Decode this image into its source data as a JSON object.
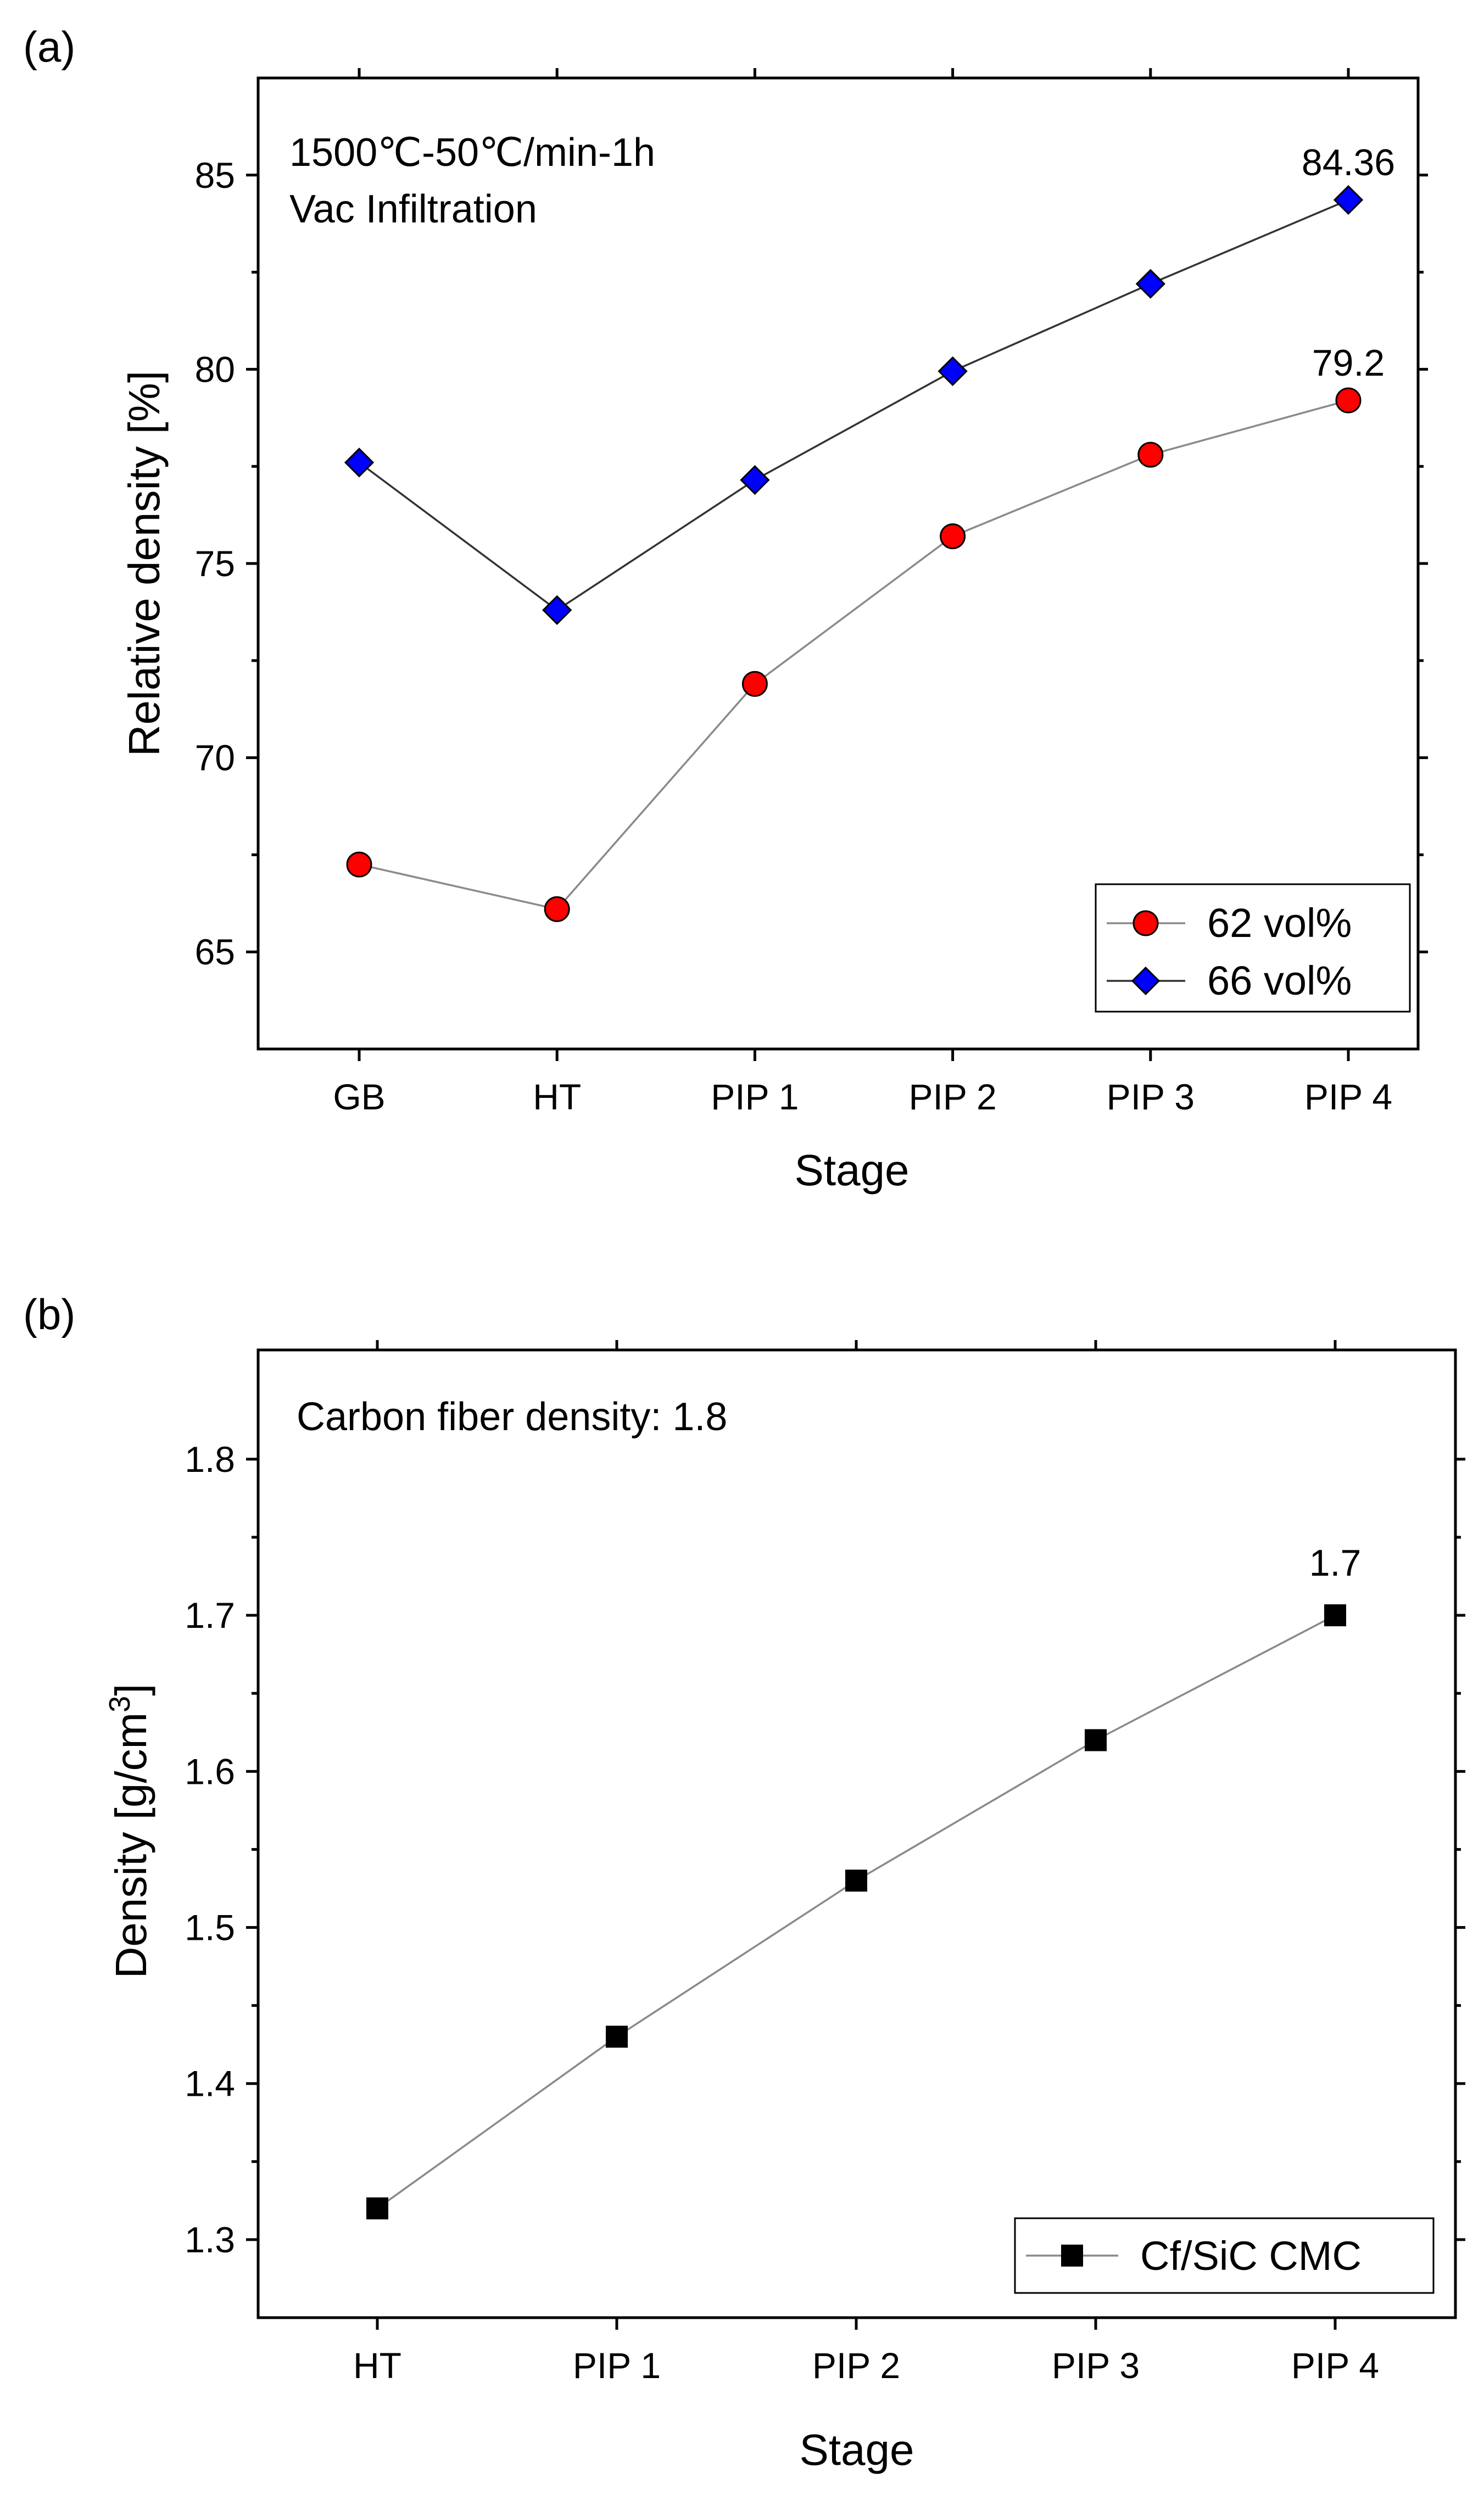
{
  "chart_data": [
    {
      "panel_label": "(a)",
      "type": "line",
      "categories": [
        "GB",
        "HT",
        "PIP 1",
        "PIP 2",
        "PIP 3",
        "PIP 4"
      ],
      "ylim": [
        62.5,
        87.5
      ],
      "yticks": [
        65,
        70,
        75,
        80,
        85
      ],
      "ytick_labels": [
        "65",
        "70",
        "75",
        "80",
        "85"
      ],
      "xlabel": "Stage",
      "ylabel": "Relative density [%]",
      "annotation_lines": [
        "1500℃-50℃/min-1h",
        "Vac Infiltration"
      ],
      "legend_position": "bottom-right",
      "series": [
        {
          "name": "62 vol%",
          "values": [
            67.25,
            66.1,
            71.9,
            75.7,
            77.8,
            79.2
          ],
          "marker": "circle",
          "color": "#ff0000",
          "line_color": "#8a8a8a",
          "end_label": "79.2"
        },
        {
          "name": "66 vol%",
          "values": [
            77.6,
            73.8,
            77.15,
            79.95,
            82.2,
            84.36
          ],
          "marker": "diamond",
          "color": "#0000ff",
          "line_color": "#333333",
          "end_label": "84.36"
        }
      ]
    },
    {
      "panel_label": "(b)",
      "type": "line",
      "categories": [
        "HT",
        "PIP 1",
        "PIP 2",
        "PIP 3",
        "PIP 4"
      ],
      "ylim": [
        1.25,
        1.87
      ],
      "yticks": [
        1.3,
        1.4,
        1.5,
        1.6,
        1.7,
        1.8
      ],
      "ytick_labels": [
        "1.3",
        "1.4",
        "1.5",
        "1.6",
        "1.7",
        "1.8"
      ],
      "xlabel": "Stage",
      "ylabel_main": "Density [g/cm",
      "ylabel_sup": "3",
      "ylabel_end": "]",
      "annotation_lines": [
        "Carbon fiber density: 1.8"
      ],
      "legend_position": "bottom-right",
      "series": [
        {
          "name": "Cf/SiC CMC",
          "values": [
            1.32,
            1.43,
            1.53,
            1.62,
            1.7
          ],
          "marker": "square",
          "color": "#000000",
          "line_color": "#8a8a8a",
          "end_label": "1.7"
        }
      ]
    }
  ]
}
